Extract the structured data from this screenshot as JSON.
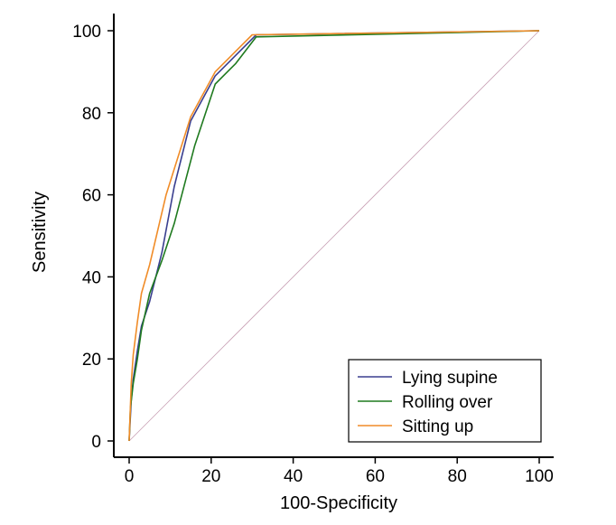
{
  "chart_data": {
    "type": "line",
    "title": "",
    "xlabel": "100-Specificity",
    "ylabel": "Sensitivity",
    "xlim": [
      0,
      100
    ],
    "ylim": [
      0,
      100
    ],
    "xticks": [
      0,
      20,
      40,
      60,
      80,
      100
    ],
    "yticks": [
      0,
      20,
      40,
      60,
      80,
      100
    ],
    "grid": false,
    "legend_position": "bottom-right",
    "reference_line": {
      "x": [
        0,
        100
      ],
      "y": [
        0,
        100
      ],
      "color": "#c8a0b4"
    },
    "series": [
      {
        "name": "Lying supine",
        "color": "#3a3f8f",
        "x": [
          0,
          0.5,
          1,
          2,
          3,
          5,
          8,
          11,
          15,
          21,
          26,
          31,
          100
        ],
        "y": [
          0,
          10,
          15,
          22,
          28,
          34,
          46,
          62,
          78,
          89,
          94,
          99,
          100
        ]
      },
      {
        "name": "Rolling over",
        "color": "#1f7a1f",
        "x": [
          0,
          0.3,
          1,
          2,
          3,
          5,
          8,
          11,
          16,
          21,
          26,
          31,
          100
        ],
        "y": [
          0,
          8,
          14,
          20,
          27,
          36,
          44,
          53,
          72,
          87,
          92,
          98.5,
          100
        ]
      },
      {
        "name": "Sitting up",
        "color": "#f08c28",
        "x": [
          0,
          0.5,
          1,
          2,
          3,
          5,
          9,
          15,
          21,
          26,
          30,
          100
        ],
        "y": [
          0,
          14,
          21,
          29,
          36,
          43,
          60,
          79,
          90,
          95,
          99,
          100
        ]
      }
    ]
  }
}
